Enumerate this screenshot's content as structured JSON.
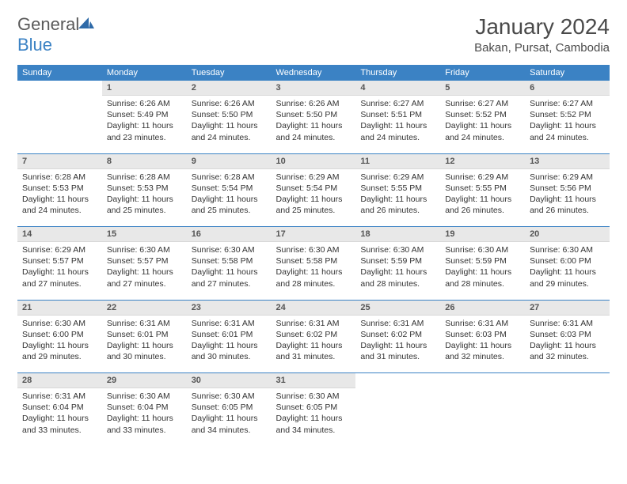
{
  "logo": {
    "general": "General",
    "blue": "Blue"
  },
  "title": "January 2024",
  "location": "Bakan, Pursat, Cambodia",
  "weekdays": [
    "Sunday",
    "Monday",
    "Tuesday",
    "Wednesday",
    "Thursday",
    "Friday",
    "Saturday"
  ],
  "colors": {
    "header_bg": "#3b82c4",
    "header_fg": "#ffffff",
    "daynum_bg": "#e8e8e8"
  },
  "weeks": [
    [
      {
        "n": "",
        "sr": "",
        "ss": "",
        "dl": ""
      },
      {
        "n": "1",
        "sr": "6:26 AM",
        "ss": "5:49 PM",
        "dl": "11 hours and 23 minutes."
      },
      {
        "n": "2",
        "sr": "6:26 AM",
        "ss": "5:50 PM",
        "dl": "11 hours and 24 minutes."
      },
      {
        "n": "3",
        "sr": "6:26 AM",
        "ss": "5:50 PM",
        "dl": "11 hours and 24 minutes."
      },
      {
        "n": "4",
        "sr": "6:27 AM",
        "ss": "5:51 PM",
        "dl": "11 hours and 24 minutes."
      },
      {
        "n": "5",
        "sr": "6:27 AM",
        "ss": "5:52 PM",
        "dl": "11 hours and 24 minutes."
      },
      {
        "n": "6",
        "sr": "6:27 AM",
        "ss": "5:52 PM",
        "dl": "11 hours and 24 minutes."
      }
    ],
    [
      {
        "n": "7",
        "sr": "6:28 AM",
        "ss": "5:53 PM",
        "dl": "11 hours and 24 minutes."
      },
      {
        "n": "8",
        "sr": "6:28 AM",
        "ss": "5:53 PM",
        "dl": "11 hours and 25 minutes."
      },
      {
        "n": "9",
        "sr": "6:28 AM",
        "ss": "5:54 PM",
        "dl": "11 hours and 25 minutes."
      },
      {
        "n": "10",
        "sr": "6:29 AM",
        "ss": "5:54 PM",
        "dl": "11 hours and 25 minutes."
      },
      {
        "n": "11",
        "sr": "6:29 AM",
        "ss": "5:55 PM",
        "dl": "11 hours and 26 minutes."
      },
      {
        "n": "12",
        "sr": "6:29 AM",
        "ss": "5:55 PM",
        "dl": "11 hours and 26 minutes."
      },
      {
        "n": "13",
        "sr": "6:29 AM",
        "ss": "5:56 PM",
        "dl": "11 hours and 26 minutes."
      }
    ],
    [
      {
        "n": "14",
        "sr": "6:29 AM",
        "ss": "5:57 PM",
        "dl": "11 hours and 27 minutes."
      },
      {
        "n": "15",
        "sr": "6:30 AM",
        "ss": "5:57 PM",
        "dl": "11 hours and 27 minutes."
      },
      {
        "n": "16",
        "sr": "6:30 AM",
        "ss": "5:58 PM",
        "dl": "11 hours and 27 minutes."
      },
      {
        "n": "17",
        "sr": "6:30 AM",
        "ss": "5:58 PM",
        "dl": "11 hours and 28 minutes."
      },
      {
        "n": "18",
        "sr": "6:30 AM",
        "ss": "5:59 PM",
        "dl": "11 hours and 28 minutes."
      },
      {
        "n": "19",
        "sr": "6:30 AM",
        "ss": "5:59 PM",
        "dl": "11 hours and 28 minutes."
      },
      {
        "n": "20",
        "sr": "6:30 AM",
        "ss": "6:00 PM",
        "dl": "11 hours and 29 minutes."
      }
    ],
    [
      {
        "n": "21",
        "sr": "6:30 AM",
        "ss": "6:00 PM",
        "dl": "11 hours and 29 minutes."
      },
      {
        "n": "22",
        "sr": "6:31 AM",
        "ss": "6:01 PM",
        "dl": "11 hours and 30 minutes."
      },
      {
        "n": "23",
        "sr": "6:31 AM",
        "ss": "6:01 PM",
        "dl": "11 hours and 30 minutes."
      },
      {
        "n": "24",
        "sr": "6:31 AM",
        "ss": "6:02 PM",
        "dl": "11 hours and 31 minutes."
      },
      {
        "n": "25",
        "sr": "6:31 AM",
        "ss": "6:02 PM",
        "dl": "11 hours and 31 minutes."
      },
      {
        "n": "26",
        "sr": "6:31 AM",
        "ss": "6:03 PM",
        "dl": "11 hours and 32 minutes."
      },
      {
        "n": "27",
        "sr": "6:31 AM",
        "ss": "6:03 PM",
        "dl": "11 hours and 32 minutes."
      }
    ],
    [
      {
        "n": "28",
        "sr": "6:31 AM",
        "ss": "6:04 PM",
        "dl": "11 hours and 33 minutes."
      },
      {
        "n": "29",
        "sr": "6:30 AM",
        "ss": "6:04 PM",
        "dl": "11 hours and 33 minutes."
      },
      {
        "n": "30",
        "sr": "6:30 AM",
        "ss": "6:05 PM",
        "dl": "11 hours and 34 minutes."
      },
      {
        "n": "31",
        "sr": "6:30 AM",
        "ss": "6:05 PM",
        "dl": "11 hours and 34 minutes."
      },
      {
        "n": "",
        "sr": "",
        "ss": "",
        "dl": ""
      },
      {
        "n": "",
        "sr": "",
        "ss": "",
        "dl": ""
      },
      {
        "n": "",
        "sr": "",
        "ss": "",
        "dl": ""
      }
    ]
  ],
  "labels": {
    "sunrise": "Sunrise:",
    "sunset": "Sunset:",
    "daylight": "Daylight:"
  }
}
